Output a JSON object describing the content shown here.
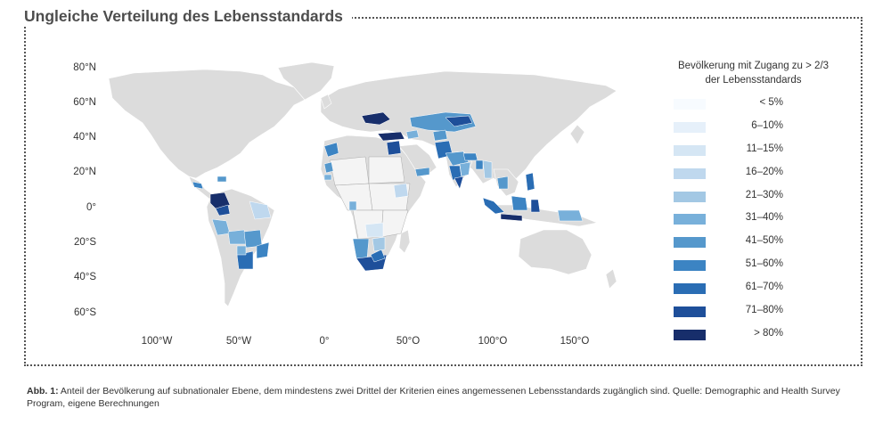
{
  "title": "Ungleiche Verteilung des Lebensstandards",
  "legend": {
    "title_line1": "Bevölkerung mit Zugang zu > 2/3",
    "title_line2": "der Lebensstandards",
    "items": [
      {
        "label": "< 5%",
        "color": "#f7fbff"
      },
      {
        "label": "6–10%",
        "color": "#e6f0fa"
      },
      {
        "label": "11–15%",
        "color": "#d5e6f4"
      },
      {
        "label": "16–20%",
        "color": "#bfd8ee"
      },
      {
        "label": "21–30%",
        "color": "#a3c8e4"
      },
      {
        "label": "31–40%",
        "color": "#78b0da"
      },
      {
        "label": "41–50%",
        "color": "#5598cc"
      },
      {
        "label": "51–60%",
        "color": "#3c84c3"
      },
      {
        "label": "61–70%",
        "color": "#2a6db4"
      },
      {
        "label": "71–80%",
        "color": "#1e4f9a"
      },
      {
        "label": "> 80%",
        "color": "#172e6b"
      }
    ]
  },
  "map": {
    "land_color": "#dcdcdc",
    "ocean_color": "#ffffff",
    "border_color": "#ffffff",
    "lat_ticks": [
      "80°N",
      "60°N",
      "40°N",
      "20°N",
      "0°",
      "20°S",
      "40°S",
      "60°S"
    ],
    "lon_ticks": [
      "100°W",
      "50°W",
      "0°",
      "50°O",
      "100°O",
      "150°O"
    ]
  },
  "caption": {
    "label": "Abb. 1:",
    "text": " Anteil der Bevölkerung auf subnationaler Ebene, dem mindestens zwei Drittel der Kriterien eines angemessenen Lebensstandards zugänglich sind. Quelle: Demographic and Health Survey Program, eigene Berechnungen"
  }
}
